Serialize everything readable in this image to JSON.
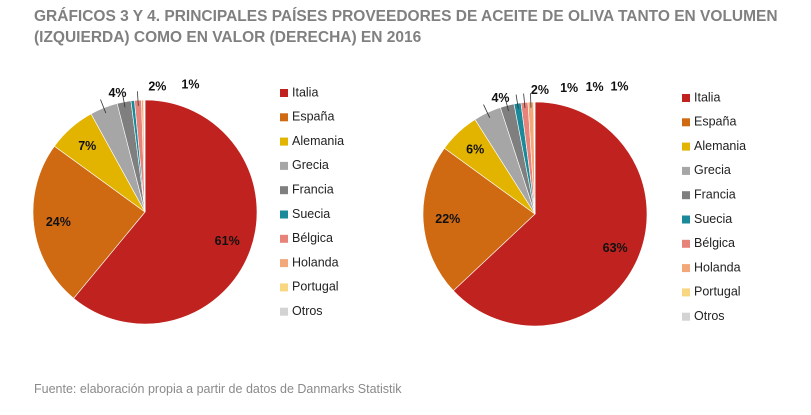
{
  "title": "GRÁFICOS 3 Y 4. PRINCIPALES PAÍSES PROVEEDORES DE ACEITE DE OLIVA TANTO EN VOLUMEN (IZQUIERDA) COMO EN VALOR (DERECHA) EN 2016",
  "source": "Fuente: elaboración propia a partir de datos de Danmarks Statistik",
  "chart_data": [
    {
      "type": "pie",
      "categories": [
        "Italia",
        "España",
        "Alemania",
        "Grecia",
        "Francia",
        "Suecia",
        "Bélgica",
        "Holanda",
        "Portugal",
        "Otros"
      ],
      "values": [
        61,
        24,
        7,
        4,
        2,
        0.5,
        1,
        0.3,
        0.1,
        0.1
      ],
      "value_labels": [
        "61%",
        "24%",
        "7%",
        "4%",
        "2%",
        null,
        "1%",
        null,
        null,
        null
      ],
      "colors": [
        "#c0231f",
        "#d06a12",
        "#e2b400",
        "#a6a6a6",
        "#7f7f7f",
        "#1a8a9a",
        "#e8837a",
        "#f2a878",
        "#f8d780",
        "#d3d3d3"
      ]
    },
    {
      "type": "pie",
      "categories": [
        "Italia",
        "España",
        "Alemania",
        "Grecia",
        "Francia",
        "Suecia",
        "Bélgica",
        "Holanda",
        "Portugal",
        "Otros"
      ],
      "values": [
        63,
        22,
        6,
        4,
        2,
        1,
        1,
        0.8,
        0.1,
        0.1
      ],
      "value_labels": [
        "63%",
        "22%",
        "6%",
        "4%",
        "2%",
        "1%",
        "1%",
        "1%",
        null,
        null
      ],
      "colors": [
        "#c0231f",
        "#d06a12",
        "#e2b400",
        "#a6a6a6",
        "#7f7f7f",
        "#1a8a9a",
        "#e8837a",
        "#f2a878",
        "#f8d780",
        "#d3d3d3"
      ]
    }
  ]
}
